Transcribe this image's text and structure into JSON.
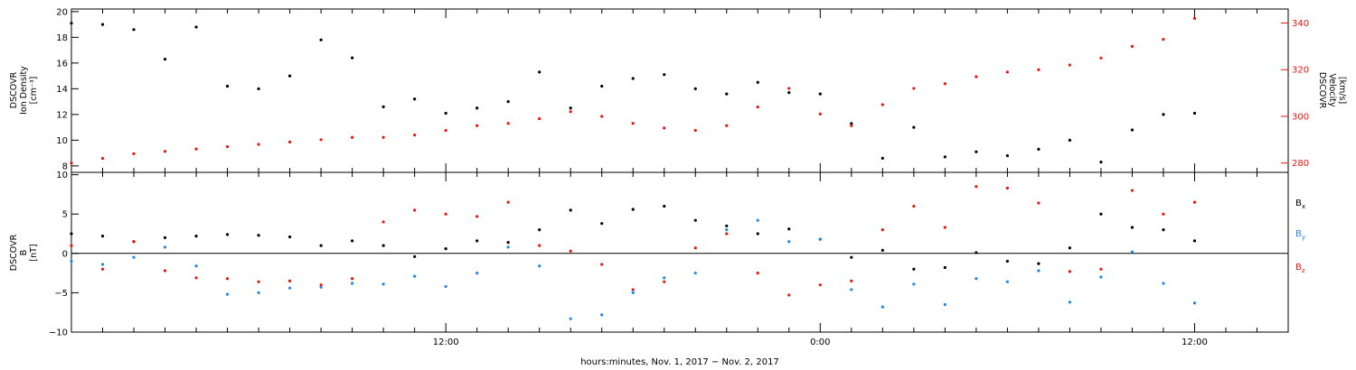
{
  "chart_data": [
    {
      "type": "scatter",
      "title": "",
      "ylabel": [
        "DSCOVR",
        "Ion Density",
        "[cm⁻³]"
      ],
      "ylabel_right": [
        "DSCOVR",
        "Velocity",
        "[km/s]"
      ],
      "ylim": [
        7.5,
        20.2
      ],
      "ylim_right": [
        276,
        346
      ],
      "y_ticks": [
        "8",
        "10",
        "12",
        "14",
        "16",
        "18",
        "20"
      ],
      "y_ticks_right": [
        "280",
        "300",
        "320",
        "340"
      ],
      "grid": false,
      "series": [
        {
          "axis": "left",
          "color": "#000000",
          "x": [
            -1440,
            -1380,
            -1320,
            -1260,
            -1200,
            -1140,
            -1080,
            -1020,
            -960,
            -900,
            -840,
            -780,
            -720,
            -660,
            -600,
            -540,
            -480,
            -420,
            -360,
            -300,
            -240,
            -180,
            -120,
            -60,
            0,
            60,
            120,
            180,
            240,
            300,
            360,
            420,
            480,
            540,
            600,
            660,
            720
          ],
          "y": [
            19.1,
            19.0,
            18.6,
            16.3,
            18.8,
            14.2,
            14.0,
            15.0,
            17.8,
            16.4,
            12.6,
            13.2,
            12.1,
            12.5,
            13.0,
            15.3,
            12.5,
            14.2,
            14.8,
            15.1,
            14.0,
            13.6,
            14.5,
            13.7,
            13.6,
            11.3,
            8.6,
            11.0,
            8.7,
            9.1,
            8.8,
            9.3,
            10.0,
            8.3,
            10.8,
            12.0,
            12.1
          ]
        },
        {
          "axis": "right",
          "color": "#e8160f",
          "x": [
            -1440,
            -1380,
            -1320,
            -1260,
            -1200,
            -1140,
            -1080,
            -1020,
            -960,
            -900,
            -840,
            -780,
            -720,
            -660,
            -600,
            -540,
            -480,
            -420,
            -360,
            -300,
            -240,
            -180,
            -120,
            -60,
            0,
            60,
            120,
            180,
            240,
            300,
            360,
            420,
            480,
            540,
            600,
            660,
            720
          ],
          "y": [
            280,
            282,
            284,
            285,
            286,
            287,
            288,
            289,
            290,
            291,
            291,
            292,
            294,
            296,
            297,
            299,
            302,
            300,
            297,
            295,
            294,
            296,
            304,
            312,
            301,
            296,
            305,
            312,
            314,
            317,
            319,
            320,
            322,
            325,
            330,
            333,
            342
          ]
        }
      ]
    },
    {
      "type": "scatter",
      "title": "",
      "ylabel": [
        "DSCOVR",
        "B",
        "[nT]"
      ],
      "ylim": [
        -10,
        10.3
      ],
      "y_ticks": [
        "−10",
        "−5",
        "0",
        "5",
        "10"
      ],
      "grid": false,
      "reference_line": 0,
      "xlabel": "hours:minutes, Nov.  1, 2017 − Nov.  2, 2017",
      "x_ticks": [
        {
          "value": -720,
          "label": "12:00"
        },
        {
          "value": 0,
          "label": "0:00"
        },
        {
          "value": 720,
          "label": "12:00"
        }
      ],
      "xlim": [
        -1440,
        900
      ],
      "series": [
        {
          "name": "B",
          "subscript": "x",
          "color": "#000000",
          "x": [
            -1440,
            -1380,
            -1320,
            -1260,
            -1200,
            -1140,
            -1080,
            -1020,
            -960,
            -900,
            -840,
            -780,
            -720,
            -660,
            -600,
            -540,
            -480,
            -420,
            -360,
            -300,
            -240,
            -180,
            -120,
            -60,
            0,
            60,
            120,
            180,
            240,
            300,
            360,
            420,
            480,
            540,
            600,
            660,
            720
          ],
          "y": [
            2.5,
            2.2,
            1.5,
            2.0,
            2.2,
            2.4,
            2.3,
            2.1,
            1.0,
            1.6,
            1.0,
            -0.4,
            0.6,
            1.6,
            1.4,
            3.0,
            5.5,
            3.8,
            5.6,
            6.0,
            4.2,
            3.5,
            2.5,
            3.1,
            1.8,
            -0.5,
            0.4,
            -2.0,
            -1.8,
            0.1,
            -1.0,
            -1.3,
            0.7,
            5.0,
            3.3,
            3.0,
            1.6
          ]
        },
        {
          "name": "B",
          "subscript": "y",
          "color": "#1e88e5",
          "x": [
            -1440,
            -1380,
            -1320,
            -1260,
            -1200,
            -1140,
            -1080,
            -1020,
            -960,
            -900,
            -840,
            -780,
            -720,
            -660,
            -600,
            -540,
            -480,
            -420,
            -360,
            -300,
            -240,
            -180,
            -120,
            -60,
            0,
            60,
            120,
            180,
            240,
            300,
            360,
            420,
            480,
            540,
            600,
            660,
            720
          ],
          "y": [
            -1.0,
            -1.4,
            -0.5,
            0.8,
            -1.6,
            -5.2,
            -5.0,
            -4.4,
            -4.3,
            -3.8,
            -3.9,
            -2.9,
            -4.2,
            -2.5,
            0.8,
            -1.6,
            -8.3,
            -7.8,
            -5.0,
            -3.1,
            -2.5,
            3.0,
            4.2,
            1.5,
            1.8,
            -4.6,
            -6.8,
            -3.9,
            -6.5,
            -3.2,
            -3.6,
            -2.2,
            -6.2,
            -3.0,
            0.2,
            -3.8,
            -6.3
          ]
        },
        {
          "name": "B",
          "subscript": "z",
          "color": "#e8160f",
          "x": [
            -1440,
            -1380,
            -1320,
            -1260,
            -1200,
            -1140,
            -1080,
            -1020,
            -960,
            -900,
            -840,
            -780,
            -720,
            -660,
            -600,
            -540,
            -480,
            -420,
            -360,
            -300,
            -240,
            -180,
            -120,
            -60,
            0,
            60,
            120,
            180,
            240,
            300,
            360,
            420,
            480,
            540,
            600,
            660,
            720
          ],
          "y": [
            1.0,
            -2.0,
            1.5,
            -2.2,
            -3.1,
            -3.2,
            -3.6,
            -3.5,
            -4.0,
            -3.2,
            4.0,
            5.5,
            5.0,
            4.7,
            6.5,
            1.0,
            0.3,
            -1.4,
            -4.6,
            -3.6,
            0.7,
            2.5,
            -2.5,
            -5.3,
            -4.0,
            -3.5,
            3.0,
            6.0,
            3.3,
            8.5,
            8.3,
            6.4,
            -2.3,
            -2.0,
            8.0,
            5.0,
            6.5
          ]
        }
      ]
    }
  ]
}
